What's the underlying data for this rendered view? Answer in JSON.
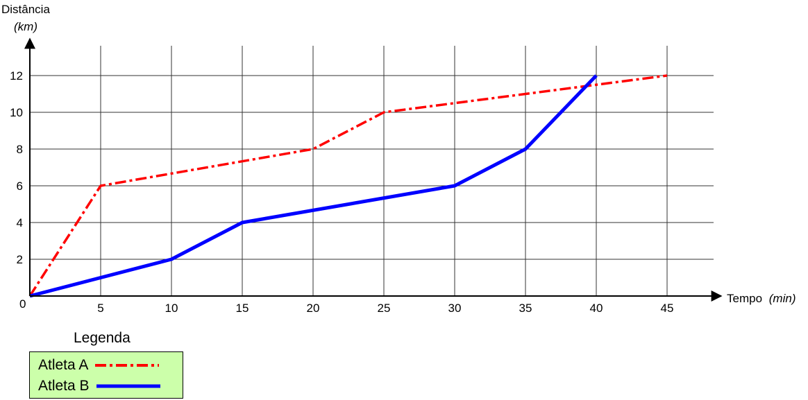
{
  "chart_data": {
    "type": "line",
    "ylabel": "Distância",
    "ylabel_unit": "(km)",
    "xlabel": "Tempo",
    "xlabel_unit": "(min)",
    "origin_label": "0",
    "xlim": [
      0,
      45
    ],
    "ylim": [
      0,
      13.5
    ],
    "x_ticks": [
      5,
      10,
      15,
      20,
      25,
      30,
      35,
      40,
      45
    ],
    "y_ticks": [
      2,
      4,
      6,
      8,
      10,
      12
    ],
    "grid": true,
    "legend_position": "bottom-left",
    "legend_title": "Legenda",
    "series": [
      {
        "name": "Atleta A",
        "color": "#ff0000",
        "line_style": "dash-dot",
        "x": [
          0,
          5,
          20,
          25,
          45
        ],
        "y": [
          0,
          6,
          8,
          10,
          12
        ]
      },
      {
        "name": "Atleta B",
        "color": "#0000ff",
        "line_style": "solid",
        "x": [
          0,
          10,
          15,
          30,
          35,
          40
        ],
        "y": [
          0,
          2,
          4,
          6,
          8,
          12
        ]
      }
    ]
  }
}
